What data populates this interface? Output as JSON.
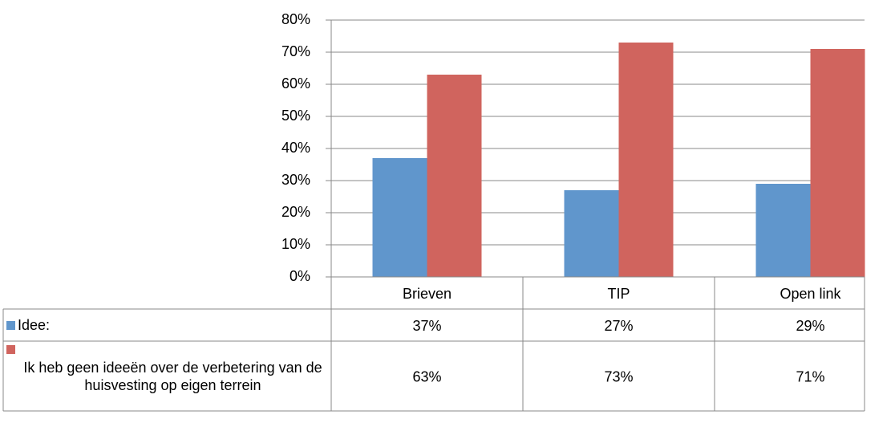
{
  "chart_data": {
    "type": "bar",
    "categories": [
      "Brieven",
      "TIP",
      "Open link"
    ],
    "series": [
      {
        "name": "Idee:",
        "color": "#6096cc",
        "values": [
          37,
          27,
          29
        ],
        "value_labels": [
          "37%",
          "27%",
          "29%"
        ]
      },
      {
        "name": "Ik heb geen ideeën over de verbetering van de huisvesting op eigen terrein",
        "color": "#d0645e",
        "values": [
          63,
          73,
          71
        ],
        "value_labels": [
          "63%",
          "73%",
          "71%"
        ]
      }
    ],
    "ylim": [
      0,
      80
    ],
    "yticks": [
      {
        "value": 0,
        "label": "0%"
      },
      {
        "value": 10,
        "label": "10%"
      },
      {
        "value": 20,
        "label": "20%"
      },
      {
        "value": 30,
        "label": "30%"
      },
      {
        "value": 40,
        "label": "40%"
      },
      {
        "value": 50,
        "label": "50%"
      },
      {
        "value": 60,
        "label": "60%"
      },
      {
        "value": 70,
        "label": "70%"
      },
      {
        "value": 80,
        "label": "80%"
      }
    ],
    "grid": true
  }
}
